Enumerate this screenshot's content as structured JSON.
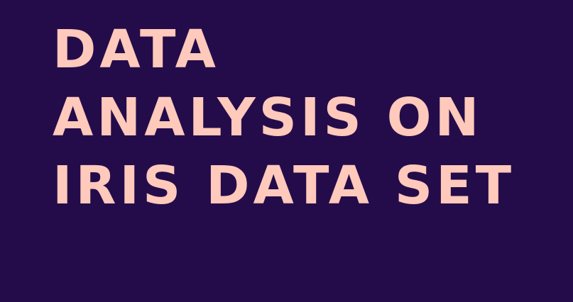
{
  "colors": {
    "background": "#240c4b",
    "text": "#ffc9bb"
  },
  "title": {
    "lines": [
      "DATA",
      "ANALYSIS ON",
      "IRIS DATA SET"
    ]
  }
}
